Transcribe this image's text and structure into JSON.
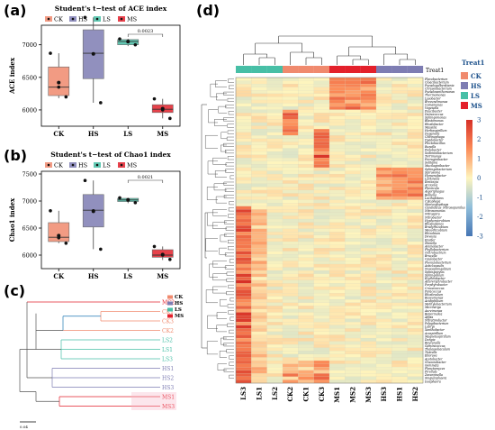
{
  "panels": {
    "a": "(a)",
    "b": "(b)",
    "c": "(c)",
    "d": "(d)"
  },
  "chart_data": [
    {
      "type": "box",
      "panel": "(a)",
      "title": "Student's t−test of ACE index",
      "ylabel": "ACE index",
      "ylim": [
        5750,
        7300
      ],
      "yticks": [
        6000,
        6500,
        7000
      ],
      "categories": [
        "CK",
        "HS",
        "LS",
        "MS"
      ],
      "legend": [
        "CK",
        "HS",
        "LS",
        "MS"
      ],
      "colors": {
        "CK": "#f08a6e",
        "HS": "#7e7db3",
        "LS": "#47bfa6",
        "MS": "#e3202b"
      },
      "boxes": [
        {
          "group": "CK",
          "min": 6180,
          "q1": 6220,
          "median": 6350,
          "q3": 6660,
          "max": 6870,
          "mean": 6420,
          "points": [
            6870,
            6350,
            6200
          ]
        },
        {
          "group": "HS",
          "min": 6110,
          "q1": 6480,
          "median": 6870,
          "q3": 7230,
          "max": 7420,
          "mean": 6860,
          "points": [
            7420,
            6860,
            6110
          ]
        },
        {
          "group": "LS",
          "min": 6980,
          "q1": 7000,
          "median": 7050,
          "q3": 7080,
          "max": 7090,
          "mean": 7050,
          "points": [
            7090,
            7050,
            7000
          ]
        },
        {
          "group": "MS",
          "min": 5870,
          "q1": 5960,
          "median": 6010,
          "q3": 6080,
          "max": 6170,
          "mean": 6020,
          "points": [
            6170,
            6000,
            5870
          ]
        }
      ],
      "significance": {
        "between": [
          "LS",
          "MS"
        ],
        "label": "0.0023"
      }
    },
    {
      "type": "box",
      "panel": "(b)",
      "title": "Student's t−test of Chao1 index",
      "ylabel": "Chao1 index",
      "ylim": [
        5750,
        7550
      ],
      "yticks": [
        6000,
        6500,
        7000,
        7500
      ],
      "categories": [
        "CK",
        "HS",
        "LS",
        "MS"
      ],
      "legend": [
        "CK",
        "HS",
        "LS",
        "MS"
      ],
      "colors": {
        "CK": "#f08a6e",
        "HS": "#7e7db3",
        "LS": "#47bfa6",
        "MS": "#e3202b"
      },
      "boxes": [
        {
          "group": "CK",
          "min": 6220,
          "q1": 6250,
          "median": 6330,
          "q3": 6600,
          "max": 6820,
          "mean": 6360,
          "points": [
            6820,
            6320,
            6220
          ]
        },
        {
          "group": "HS",
          "min": 6110,
          "q1": 6520,
          "median": 6830,
          "q3": 7120,
          "max": 7380,
          "mean": 6810,
          "points": [
            7380,
            6820,
            6110
          ]
        },
        {
          "group": "LS",
          "min": 6960,
          "q1": 6990,
          "median": 7020,
          "q3": 7050,
          "max": 7060,
          "mean": 7020,
          "points": [
            7060,
            7020,
            6970
          ]
        },
        {
          "group": "MS",
          "min": 5910,
          "q1": 5960,
          "median": 6000,
          "q3": 6100,
          "max": 6160,
          "mean": 6010,
          "points": [
            6160,
            6000,
            5920
          ]
        }
      ],
      "significance": {
        "between": [
          "LS",
          "MS"
        ],
        "label": "0.0021"
      }
    },
    {
      "type": "dendrogram",
      "panel": "(c)",
      "leaves": [
        "MS2",
        "CK1",
        "CK3",
        "CK2",
        "LS2",
        "LS1",
        "LS3",
        "HS1",
        "HS2",
        "HS3",
        "MS1",
        "MS3"
      ],
      "legend": [
        "CK",
        "HS",
        "LS",
        "MS"
      ],
      "scale_label": "0.04"
    },
    {
      "type": "heatmap",
      "panel": "(d)",
      "annotation_label": "Treat1",
      "legend_title": "Treat1",
      "legend": [
        "CK",
        "HS",
        "LS",
        "MS"
      ],
      "colorbar_ticks": [
        3,
        2,
        1,
        0,
        -1,
        -2,
        -3
      ],
      "columns": [
        "LS3",
        "LS1",
        "LS2",
        "CK2",
        "CK1",
        "CK3",
        "MS1",
        "MS2",
        "MS3",
        "HS3",
        "HS1",
        "HS2"
      ],
      "column_groups": [
        "LS",
        "LS",
        "LS",
        "CK",
        "CK",
        "CK",
        "MS",
        "MS",
        "MS",
        "HS",
        "HS",
        "HS"
      ],
      "row_labels": [
        "Flavobacterium",
        "Cloacibacterium",
        "Pseudogulbenkiania",
        "Chryseobacterium",
        "Pseudoxanthomonas",
        "Thermomonas",
        "Lysobacter",
        "Brevundimonas",
        "Comamonas",
        "Vogesella",
        "Paucibacter",
        "Deinococcus",
        "Sphingomonas",
        "Blastomonas",
        "Rhodobacter",
        "Massilia",
        "Herbaspirillum",
        "Duganella",
        "Chitinophaga",
        "Dyadobacter",
        "Flectobacillus",
        "Runella",
        "Pedobacter",
        "Sediminibacterium",
        "Terrimonas",
        "Ferruginibacter",
        "Solitalea",
        "Mucilaginibacter",
        "Sphingobacterium",
        "Spirosoma",
        "Hymenobacter",
        "Larkinella",
        "Emticicia",
        "Arcicella",
        "Fluviicola",
        "Algoriphagus",
        "Belliella",
        "Lacihabitans",
        "Cytophaga",
        "Sporocytophaga",
        "Candidatus_Nitrosopumilus",
        "Nitrosomonas",
        "Nitrospira",
        "Nitrobacter",
        "Hyphomicrobium",
        "Rhodoplanes",
        "Bradyrhizobium",
        "Mesorhizobium",
        "Rhizobium",
        "Devosia",
        "Ensifer",
        "Shinella",
        "Aminobacter",
        "Phyllobacterium",
        "Ochrobactrum",
        "Brucella",
        "Caulobacter",
        "Phenylobacterium",
        "Asticcacaulis",
        "Novosphingobium",
        "Sphingopyxis",
        "Sphingobium",
        "Erythrobacter",
        "Altererythrobacter",
        "Porphyrobacter",
        "Croceicoccus",
        "Paracoccus",
        "Rhodovulum",
        "Roseomonas",
        "Acidiphilium",
        "Methylobacterium",
        "Microvirga",
        "Aureimonas",
        "Beijerinckia",
        "Afipia",
        "Nitratireductor",
        "Pelagibacterium",
        "Labrys",
        "Xanthobacter",
        "Azospirillum",
        "Magnetospirillum",
        "Dongia",
        "Reyranella",
        "Geminicoccus",
        "Thalassobaculum",
        "Tistrella",
        "Elioraea",
        "Acetobacter",
        "Gluconobacter",
        "Gemmata",
        "Planctomyces",
        "Pirellula",
        "Zavarzinella",
        "Singulisphaera",
        "Isosphaera"
      ]
    }
  ]
}
